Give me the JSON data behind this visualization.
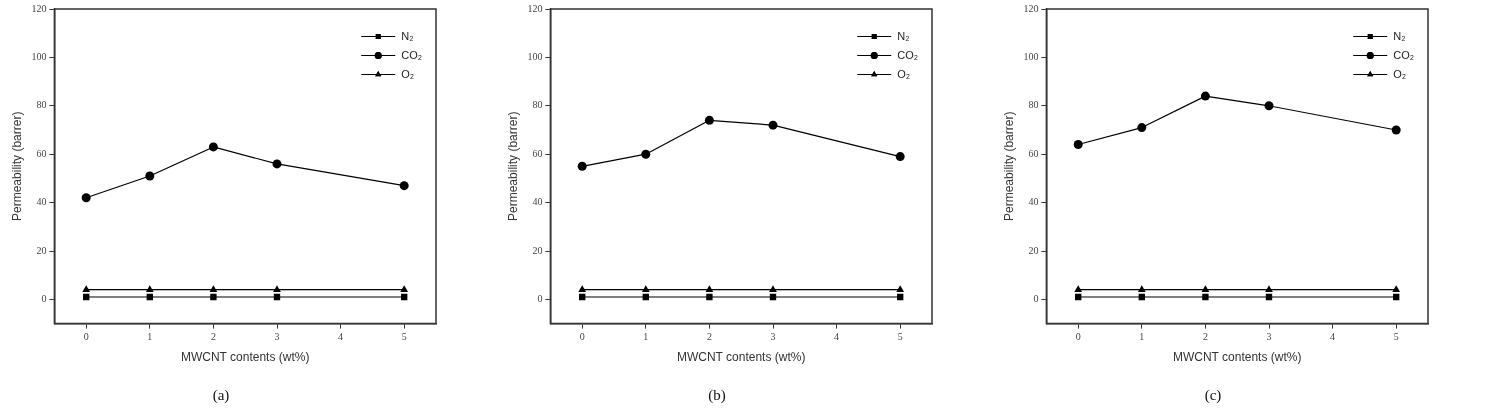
{
  "chart_data": [
    {
      "type": "line",
      "title": "(a)",
      "xlabel": "MWCNT contents (wt%)",
      "ylabel": "Permeability (barrer)",
      "x": [
        0,
        1,
        2,
        3,
        5
      ],
      "xlim": [
        -0.5,
        5.5
      ],
      "xticks": [
        0,
        1,
        2,
        3,
        4,
        5
      ],
      "ylim": [
        -10,
        120
      ],
      "yticks": [
        0,
        20,
        40,
        60,
        80,
        100,
        120
      ],
      "grid": false,
      "legend": "top right",
      "line_style": "solid",
      "series": [
        {
          "name": "N₂",
          "color": "#000000",
          "marker": "square",
          "values": [
            1,
            1,
            1,
            1,
            1
          ]
        },
        {
          "name": "CO₂",
          "color": "#000000",
          "marker": "circle",
          "values": [
            42,
            51,
            63,
            56,
            47
          ]
        },
        {
          "name": "O₂",
          "color": "#000000",
          "marker": "triangle",
          "values": [
            4,
            4,
            4,
            4,
            4
          ]
        }
      ]
    },
    {
      "type": "line",
      "title": "(b)",
      "xlabel": "MWCNT contents (wt%)",
      "ylabel": "Permeability (barrer)",
      "x": [
        0,
        1,
        2,
        3,
        5
      ],
      "xlim": [
        -0.5,
        5.5
      ],
      "xticks": [
        0,
        1,
        2,
        3,
        4,
        5
      ],
      "ylim": [
        -10,
        120
      ],
      "yticks": [
        0,
        20,
        40,
        60,
        80,
        100,
        120
      ],
      "grid": false,
      "legend": "top right",
      "line_style": "solid",
      "series": [
        {
          "name": "N₂",
          "color": "#000000",
          "marker": "square",
          "values": [
            1,
            1,
            1,
            1,
            1
          ]
        },
        {
          "name": "CO₂",
          "color": "#000000",
          "marker": "circle",
          "values": [
            55,
            60,
            74,
            72,
            59
          ]
        },
        {
          "name": "O₂",
          "color": "#000000",
          "marker": "triangle",
          "values": [
            4,
            4,
            4,
            4,
            4
          ]
        }
      ]
    },
    {
      "type": "line",
      "title": "(c)",
      "xlabel": "MWCNT contents (wt%)",
      "ylabel": "Permeability (barrer)",
      "x": [
        0,
        1,
        2,
        3,
        5
      ],
      "xlim": [
        -0.5,
        5.5
      ],
      "xticks": [
        0,
        1,
        2,
        3,
        4,
        5
      ],
      "ylim": [
        -10,
        120
      ],
      "yticks": [
        0,
        20,
        40,
        60,
        80,
        100,
        120
      ],
      "grid": false,
      "legend": "top right",
      "line_style": "solid",
      "series": [
        {
          "name": "N₂",
          "color": "#000000",
          "marker": "square",
          "values": [
            1,
            1,
            1,
            1,
            1
          ]
        },
        {
          "name": "CO₂",
          "color": "#000000",
          "marker": "circle",
          "values": [
            64,
            71,
            84,
            80,
            70
          ]
        },
        {
          "name": "O₂",
          "color": "#000000",
          "marker": "triangle",
          "values": [
            4,
            4,
            4,
            4,
            4
          ]
        }
      ]
    }
  ]
}
